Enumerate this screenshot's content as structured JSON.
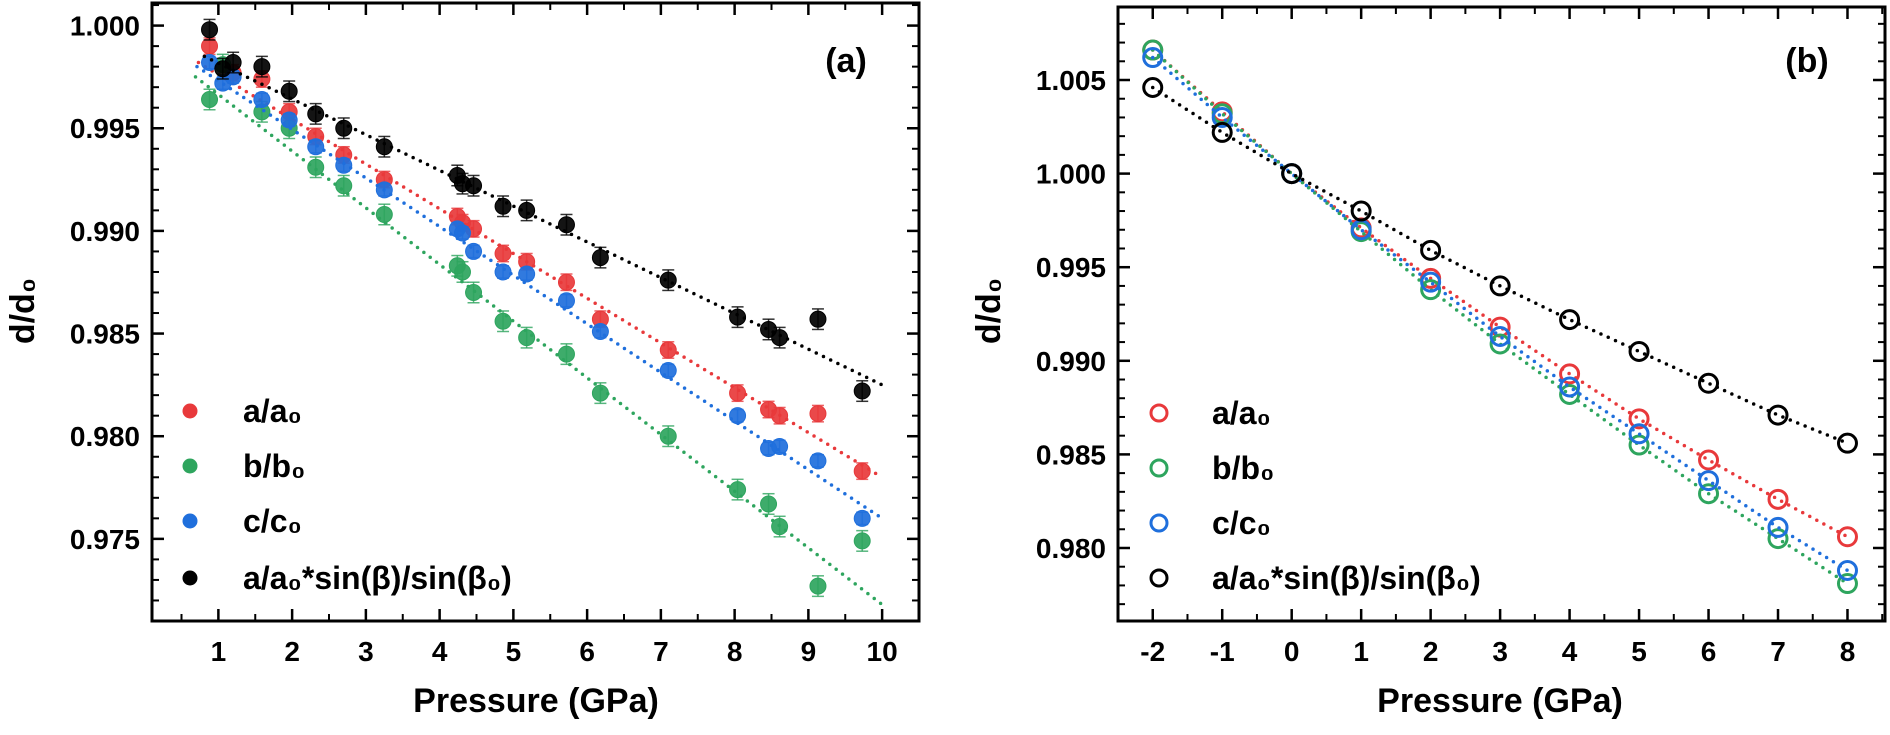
{
  "chart_data": [
    {
      "type": "scatter",
      "panel_label": "(a)",
      "xlabel": "Pressure (GPa)",
      "ylabel": "d/d₀",
      "xlim": [
        0.1,
        10.5
      ],
      "ylim": [
        0.971,
        1.0011
      ],
      "xticks": [
        1,
        2,
        3,
        4,
        5,
        6,
        7,
        8,
        9,
        10
      ],
      "yticks": [
        1.0,
        0.995,
        0.99,
        0.985,
        0.98,
        0.975
      ],
      "ytick_labels": [
        "1.000",
        "0.995",
        "0.990",
        "0.985",
        "0.980",
        "0.975"
      ],
      "marker": "filled-circle",
      "legend_position": "bottom-left",
      "series": [
        {
          "name": "a/a₀",
          "color": "#e8393b",
          "yerr": 0.0004,
          "x": [
            0.88,
            1.2,
            1.59,
            1.96,
            2.32,
            2.7,
            3.25,
            4.24,
            4.31,
            4.46,
            4.86,
            5.18,
            5.72,
            6.18,
            7.1,
            8.04,
            8.46,
            8.61,
            9.13,
            9.73
          ],
          "y": [
            0.999,
            0.9977,
            0.9974,
            0.9958,
            0.9946,
            0.9937,
            0.9925,
            0.9907,
            0.9904,
            0.9901,
            0.9889,
            0.9885,
            0.9875,
            0.9857,
            0.9842,
            0.9821,
            0.9813,
            0.981,
            0.9811,
            0.9783
          ],
          "fit": [
            [
              0.73,
              0.9982
            ],
            [
              10.0,
              0.978
            ]
          ]
        },
        {
          "name": "b/b₀",
          "color": "#2ea55e",
          "yerr": 0.0005,
          "x": [
            0.88,
            1.06,
            1.59,
            1.96,
            2.32,
            2.7,
            3.25,
            4.24,
            4.31,
            4.46,
            4.86,
            5.18,
            5.72,
            6.18,
            7.1,
            8.04,
            8.46,
            8.61,
            9.13,
            9.73
          ],
          "y": [
            0.9964,
            0.9981,
            0.9958,
            0.995,
            0.9931,
            0.9922,
            0.9908,
            0.9883,
            0.988,
            0.987,
            0.9856,
            0.9848,
            0.984,
            0.9821,
            0.98,
            0.9774,
            0.9767,
            0.9756,
            0.9727,
            0.9749
          ],
          "fit": [
            [
              0.69,
              0.9975
            ],
            [
              10.0,
              0.9718
            ]
          ]
        },
        {
          "name": "c/c₀",
          "color": "#1f6fdc",
          "yerr": 0.0003,
          "x": [
            0.88,
            1.06,
            1.2,
            1.59,
            1.96,
            2.32,
            2.7,
            3.25,
            4.24,
            4.31,
            4.46,
            4.86,
            5.18,
            5.72,
            6.18,
            7.1,
            8.04,
            8.46,
            8.61,
            9.13,
            9.73
          ],
          "y": [
            0.9982,
            0.9972,
            0.9975,
            0.9964,
            0.9954,
            0.9941,
            0.9932,
            0.992,
            0.9901,
            0.9899,
            0.989,
            0.988,
            0.9879,
            0.9866,
            0.9851,
            0.9832,
            0.981,
            0.9794,
            0.9795,
            0.9788,
            0.976
          ],
          "fit": [
            [
              0.71,
              0.998
            ],
            [
              10.0,
              0.976
            ]
          ]
        },
        {
          "name": "a/a₀*sin(β)/sin(β₀)",
          "color": "#000000",
          "yerr": 0.0005,
          "x": [
            0.88,
            1.06,
            1.2,
            1.59,
            1.96,
            2.32,
            2.7,
            3.25,
            4.24,
            4.31,
            4.46,
            4.86,
            5.18,
            5.72,
            6.18,
            7.1,
            8.04,
            8.46,
            8.61,
            9.13,
            9.73
          ],
          "y": [
            0.9998,
            0.9979,
            0.9982,
            0.998,
            0.9968,
            0.9957,
            0.995,
            0.9941,
            0.9927,
            0.9923,
            0.9922,
            0.9912,
            0.991,
            0.9903,
            0.9887,
            0.9876,
            0.9858,
            0.9852,
            0.9848,
            0.9857,
            0.9822
          ],
          "fit": [
            [
              0.81,
              0.9985
            ],
            [
              10.0,
              0.9825
            ]
          ]
        }
      ]
    },
    {
      "type": "scatter",
      "panel_label": "(b)",
      "xlabel": "Pressure (GPa)",
      "ylabel": "d/d₀",
      "xlim": [
        -2.5,
        8.54
      ],
      "ylim": [
        0.9761,
        1.0089
      ],
      "xticks": [
        -2,
        -1,
        0,
        1,
        2,
        3,
        4,
        5,
        6,
        7,
        8
      ],
      "yticks": [
        1.005,
        1.0,
        0.995,
        0.99,
        0.985,
        0.98
      ],
      "ytick_labels": [
        "1.005",
        "1.000",
        "0.995",
        "0.990",
        "0.985",
        "0.980"
      ],
      "marker": "open-circle",
      "legend_position": "bottom-left",
      "series": [
        {
          "name": "a/a₀",
          "color": "#e8393b",
          "x": [
            -2,
            -1,
            0,
            1,
            2,
            3,
            4,
            5,
            6,
            7,
            8
          ],
          "y": [
            1.0066,
            1.0033,
            1.0,
            0.9971,
            0.9944,
            0.9918,
            0.9893,
            0.9869,
            0.9847,
            0.9826,
            0.9806
          ]
        },
        {
          "name": "b/b₀",
          "color": "#2ea55e",
          "x": [
            -2,
            -1,
            0,
            1,
            2,
            3,
            4,
            5,
            6,
            7,
            8
          ],
          "y": [
            1.0066,
            1.0032,
            1.0,
            0.9969,
            0.9938,
            0.9909,
            0.9882,
            0.9855,
            0.9829,
            0.9805,
            0.9781
          ]
        },
        {
          "name": "c/c₀",
          "color": "#1f6fdc",
          "x": [
            -2,
            -1,
            0,
            1,
            2,
            3,
            4,
            5,
            6,
            7,
            8
          ],
          "y": [
            1.0062,
            1.003,
            1.0,
            0.997,
            0.9942,
            0.9913,
            0.9886,
            0.9861,
            0.9836,
            0.9811,
            0.9788
          ]
        },
        {
          "name": "a/a₀*sin(β)/sin(β₀)",
          "color": "#000000",
          "x": [
            -2,
            -1,
            0,
            1,
            2,
            3,
            4,
            5,
            6,
            7,
            8
          ],
          "y": [
            1.0046,
            1.0022,
            1.0,
            0.998,
            0.9959,
            0.994,
            0.9922,
            0.9905,
            0.9888,
            0.9871,
            0.9856
          ]
        }
      ]
    }
  ]
}
